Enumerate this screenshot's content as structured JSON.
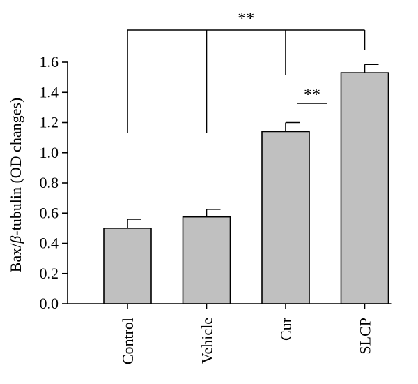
{
  "chart_data": {
    "type": "bar",
    "categories": [
      "Control",
      "Vehicle",
      "Cur",
      "SLCP"
    ],
    "values": [
      0.5,
      0.575,
      1.14,
      1.53
    ],
    "errors": [
      0.06,
      0.05,
      0.06,
      0.055
    ],
    "ylabel_prefix": "Bax/",
    "ylabel_greek": "β",
    "ylabel_suffix": "-tubulin (OD changes)",
    "ylim": [
      0,
      1.6
    ],
    "yticks": [
      "0.0",
      "0.2",
      "0.4",
      "0.6",
      "0.8",
      "1.0",
      "1.2",
      "1.4",
      "1.6"
    ],
    "bar_color": "#c0c0c0",
    "significance": [
      {
        "label": "**",
        "type": "bracket-to-all",
        "target": "SLCP",
        "from": [
          "Control",
          "Vehicle",
          "Cur"
        ]
      },
      {
        "label": "**",
        "type": "line",
        "between": [
          "Cur",
          "SLCP"
        ]
      }
    ]
  }
}
